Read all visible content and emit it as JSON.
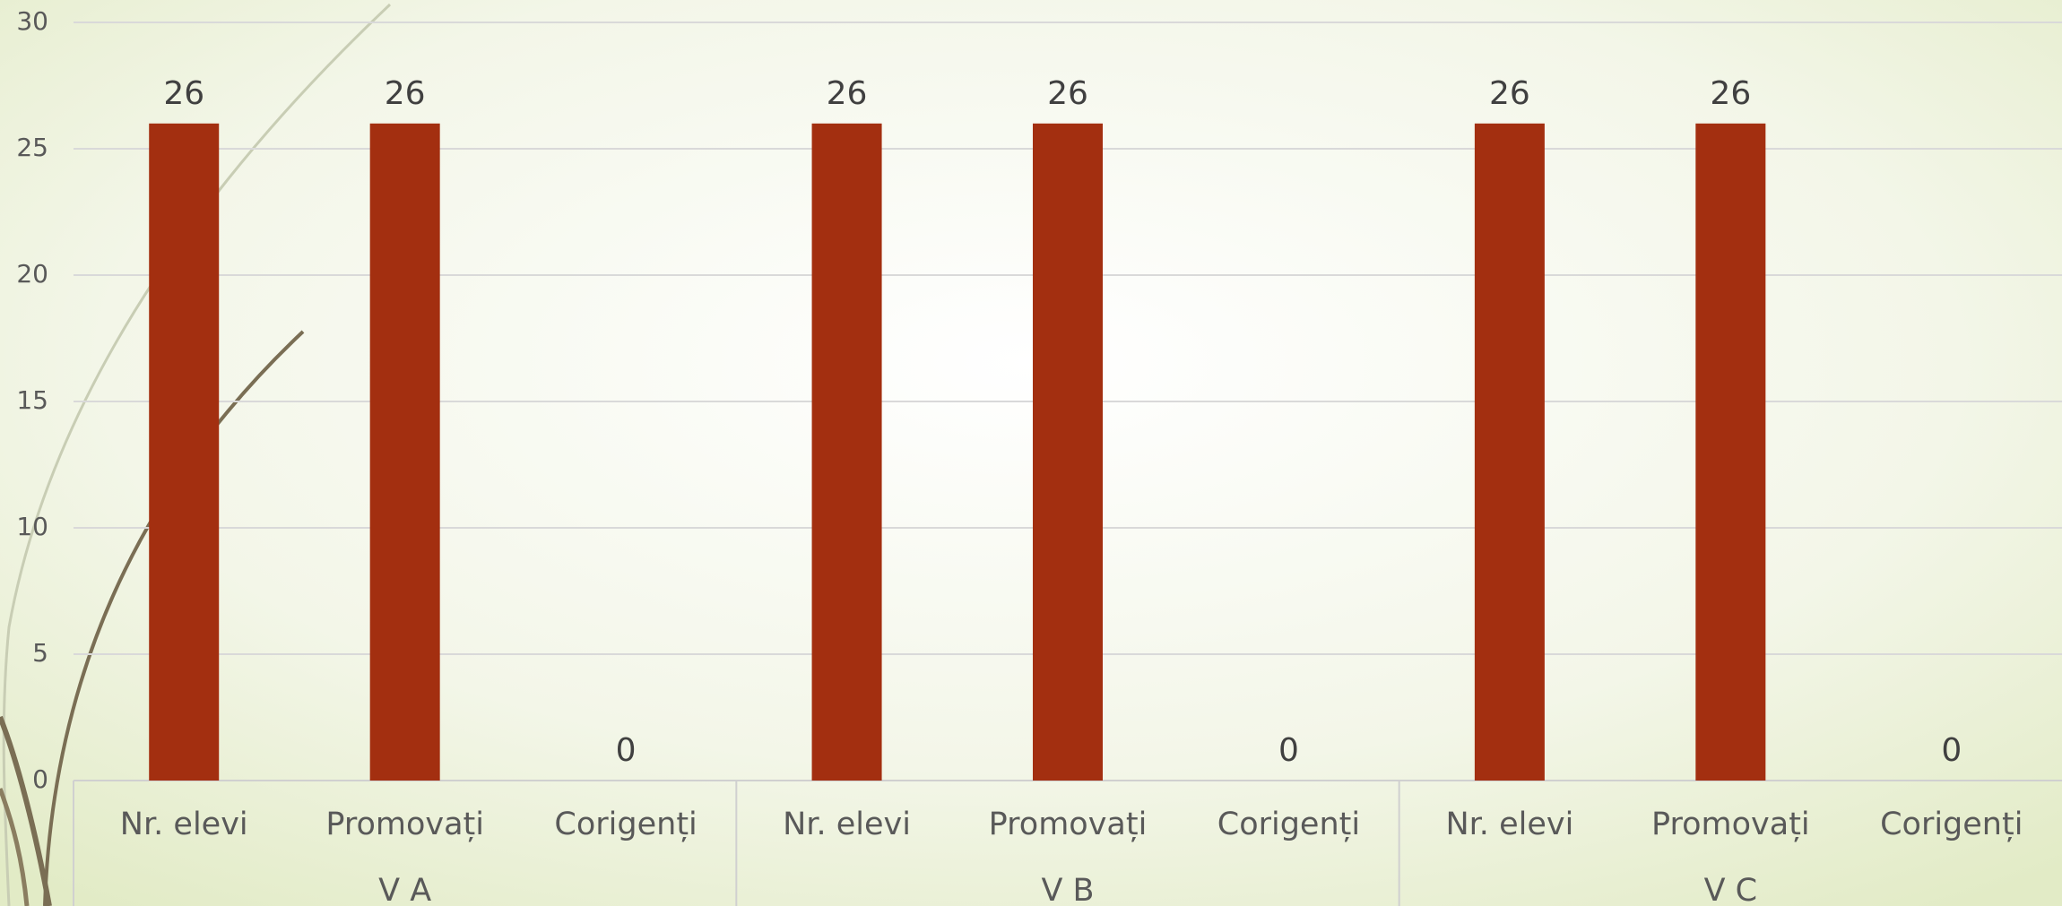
{
  "chart_data": {
    "type": "bar",
    "categories": [
      "Nr. elevi",
      "Promovați",
      "Corigenți",
      "Nr. elevi",
      "Promovați",
      "Corigenți",
      "Nr. elevi",
      "Promovați",
      "Corigenți"
    ],
    "groups": [
      "V A",
      "V B",
      "V C"
    ],
    "values": [
      26,
      26,
      0,
      26,
      26,
      0,
      26,
      26,
      0
    ],
    "color": "#a32f10",
    "ylim": [
      0,
      30
    ],
    "yticks": [
      0,
      5,
      10,
      15,
      20,
      25,
      30
    ],
    "grid": true
  }
}
